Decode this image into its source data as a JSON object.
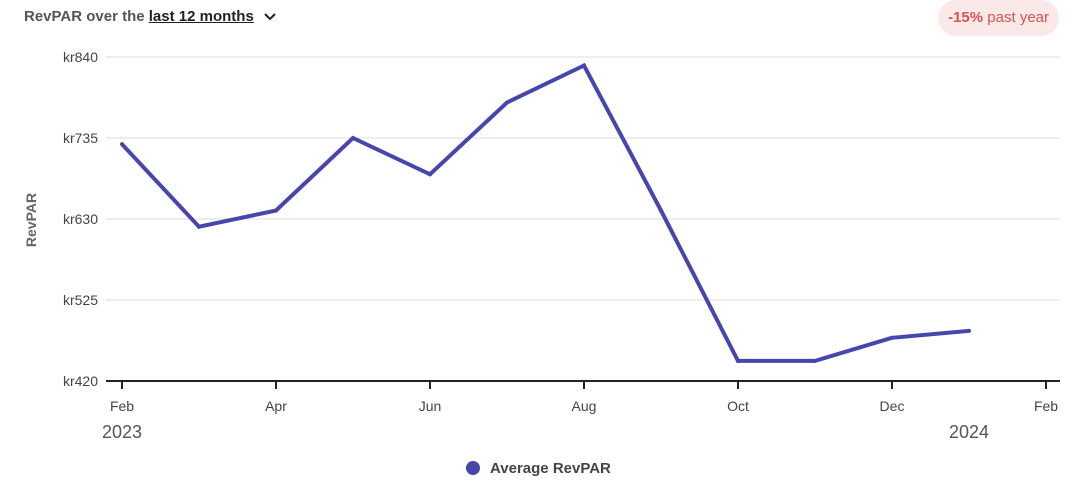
{
  "header": {
    "prefix": "RevPAR over the",
    "period_link": "last 12 months",
    "chevron_icon": "chevron-down-icon"
  },
  "badge": {
    "change": "-15%",
    "suffix": "past year",
    "color": "#d9534f",
    "background": "#fbe9e9"
  },
  "chart_data": {
    "type": "line",
    "ylabel": "RevPAR",
    "ylim": [
      420,
      840
    ],
    "y_ticks": [
      420,
      525,
      630,
      735,
      840
    ],
    "y_tick_labels": [
      "kr420",
      "kr525",
      "kr630",
      "kr735",
      "kr840"
    ],
    "x_ticks": [
      "2023-02",
      "2023-04",
      "2023-06",
      "2023-08",
      "2023-10",
      "2023-12",
      "2024-02"
    ],
    "x_tick_labels": [
      "Feb",
      "Apr",
      "Jun",
      "Aug",
      "Oct",
      "Dec",
      "Feb"
    ],
    "year_labels": [
      "2023",
      "2024"
    ],
    "x": [
      "2023-02",
      "2023-03",
      "2023-04",
      "2023-05",
      "2023-06",
      "2023-07",
      "2023-08",
      "2023-09",
      "2023-10",
      "2023-11",
      "2023-12",
      "2024-01"
    ],
    "series": [
      {
        "name": "Average RevPAR",
        "color": "#4646ad",
        "values": [
          727,
          620,
          641,
          735,
          688,
          781,
          829,
          641,
          446,
          446,
          476,
          485
        ]
      }
    ],
    "grid": true,
    "legend": "bottom-center"
  }
}
